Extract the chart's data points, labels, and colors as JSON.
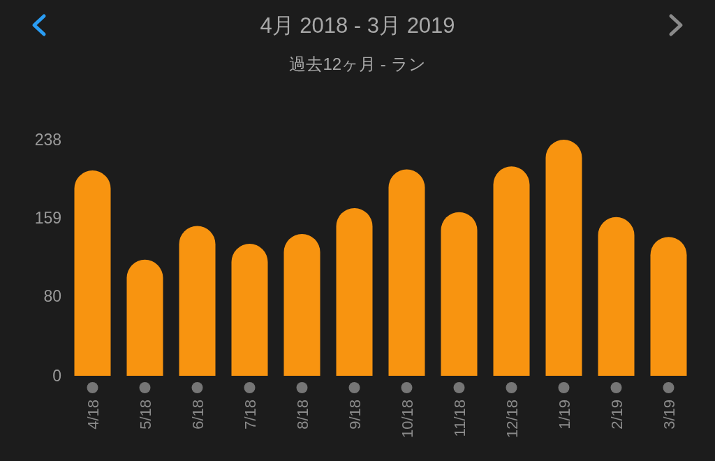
{
  "chart_data": {
    "type": "bar",
    "title": "4月 2018 - 3月 2019",
    "subtitle": "過去12ヶ月 - ラン",
    "categories": [
      "4/18",
      "5/18",
      "6/18",
      "7/18",
      "8/18",
      "9/18",
      "10/18",
      "11/18",
      "12/18",
      "1/19",
      "2/19",
      "3/19"
    ],
    "values": [
      207,
      117,
      151,
      133,
      143,
      169,
      208,
      165,
      211,
      238,
      160,
      140
    ],
    "color": "#f89410",
    "ylim": [
      0,
      238
    ],
    "yticks": [
      0,
      80,
      159,
      238
    ]
  }
}
